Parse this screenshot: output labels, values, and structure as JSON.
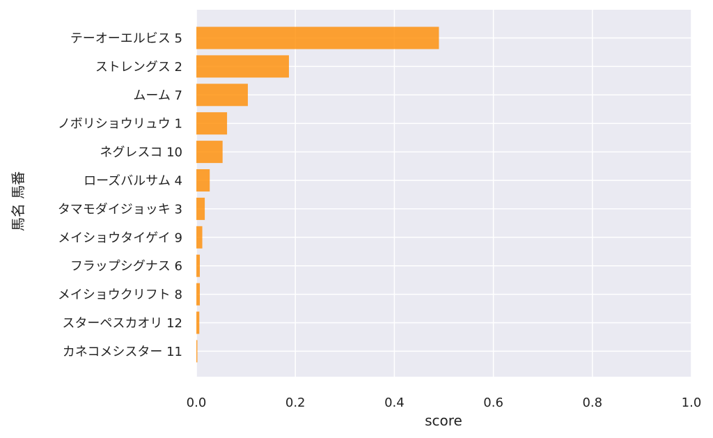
{
  "chart_data": {
    "type": "bar",
    "orientation": "horizontal",
    "categories": [
      "テーオーエルビス 5",
      "ストレングス 2",
      "ムーム 7",
      "ノボリショウリュウ 1",
      "ネグレスコ 10",
      "ローズバルサム 4",
      "タマモダイジョッキ 3",
      "メイショウタイゲイ 9",
      "フラップシグナス 6",
      "メイショウクリフト 8",
      "スターペスカオリ 12",
      "カネコメシスター 11"
    ],
    "values": [
      0.49,
      0.187,
      0.104,
      0.062,
      0.053,
      0.027,
      0.017,
      0.012,
      0.007,
      0.007,
      0.006,
      0.002
    ],
    "xlabel": "score",
    "ylabel": "馬名 馬番",
    "xlim": [
      0,
      1.0
    ],
    "xticks": [
      "0.0",
      "0.2",
      "0.4",
      "0.6",
      "0.8",
      "1.0"
    ],
    "grid": true,
    "bar_color": "#ff8c00",
    "plot_background": "#eaeaf2",
    "grid_color": "#ffffff"
  }
}
